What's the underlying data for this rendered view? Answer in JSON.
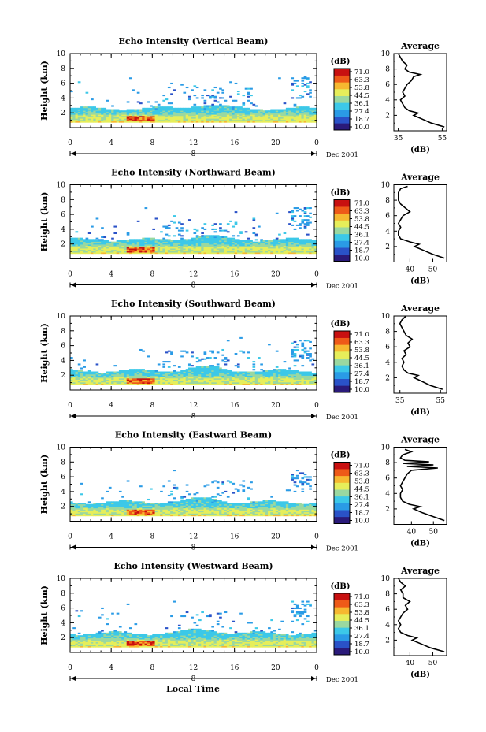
{
  "figure": {
    "x_axis_label": "Local Time",
    "colors": {
      "colormap": [
        "#2a1a7a",
        "#2a52c8",
        "#2a9be6",
        "#3cc8e8",
        "#9ad8a0",
        "#e6ee5a",
        "#f6b830",
        "#ee5a18",
        "#c81010"
      ]
    }
  },
  "chart_data": [
    {
      "type": "heatmap",
      "title": "Echo Intensity (Vertical Beam)",
      "ylabel": "Height (km)",
      "xlim": [
        0,
        24
      ],
      "ylim": [
        0,
        10
      ],
      "xticks": [
        "0",
        "4",
        "8",
        "12",
        "16",
        "20",
        "0"
      ],
      "yticks": [
        "2",
        "4",
        "6",
        "8",
        "10"
      ],
      "date_label": "8",
      "date_suffix": "Dec 2001",
      "colorbar": {
        "unit": "(dB)",
        "ticks": [
          "71.0",
          "63.3",
          "53.8",
          "44.5",
          "36.1",
          "27.4",
          "18.7",
          "10.0"
        ],
        "range": [
          10,
          71
        ]
      },
      "avg_profile": {
        "title": "Average",
        "xlabel": "(dB)",
        "xlim": [
          33,
          57
        ],
        "xtick_labels": [
          "35",
          "55"
        ],
        "xtick_values": [
          35,
          55
        ],
        "yticks": [
          "2",
          "4",
          "6",
          "8",
          "10"
        ],
        "height": [
          0.5,
          1.0,
          1.5,
          2.0,
          2.3,
          2.6,
          3.0,
          3.5,
          4.0,
          4.5,
          5.0,
          5.5,
          6.0,
          6.5,
          7.0,
          7.3,
          7.6,
          8.0,
          8.5,
          9.0,
          9.5,
          10.0
        ],
        "db": [
          56,
          50,
          46,
          42,
          44,
          40,
          38,
          37,
          36,
          38,
          37,
          38,
          39,
          41,
          42,
          45,
          40,
          38,
          39,
          37,
          36,
          35
        ]
      }
    },
    {
      "type": "heatmap",
      "title": "Echo Intensity (Northward Beam)",
      "ylabel": "Height (km)",
      "xlim": [
        0,
        24
      ],
      "ylim": [
        0,
        10
      ],
      "xticks": [
        "0",
        "4",
        "8",
        "12",
        "16",
        "20",
        "0"
      ],
      "yticks": [
        "2",
        "4",
        "6",
        "8",
        "10"
      ],
      "date_label": "8",
      "date_suffix": "Dec 2001",
      "colorbar": {
        "unit": "(dB)",
        "ticks": [
          "71.0",
          "63.3",
          "53.8",
          "44.5",
          "36.1",
          "27.4",
          "18.7",
          "10.0"
        ],
        "range": [
          10,
          71
        ]
      },
      "avg_profile": {
        "title": "Average",
        "xlabel": "(dB)",
        "xlim": [
          33,
          56
        ],
        "xtick_labels": [
          "40",
          "50"
        ],
        "xtick_values": [
          40,
          50
        ],
        "yticks": [
          "2",
          "4",
          "6",
          "8",
          "10"
        ],
        "height": [
          0.5,
          1.0,
          1.5,
          2.0,
          2.3,
          2.6,
          3.0,
          3.5,
          4.0,
          4.5,
          5.0,
          5.5,
          6.0,
          6.5,
          7.0,
          7.5,
          8.0,
          8.5,
          9.0,
          9.5,
          9.8
        ],
        "db": [
          55,
          50,
          46,
          42,
          44,
          40,
          36,
          35,
          35,
          36,
          35,
          36,
          37,
          40,
          38,
          36,
          35,
          35,
          35,
          36,
          39
        ]
      }
    },
    {
      "type": "heatmap",
      "title": "Echo Intensity (Southward Beam)",
      "ylabel": "Height (km)",
      "xlim": [
        0,
        24
      ],
      "ylim": [
        0,
        10
      ],
      "xticks": [
        "0",
        "4",
        "8",
        "12",
        "16",
        "20",
        "0"
      ],
      "yticks": [
        "2",
        "4",
        "6",
        "8",
        "10"
      ],
      "date_label": "8",
      "date_suffix": "Dec 2001",
      "colorbar": {
        "unit": "(dB)",
        "ticks": [
          "71.0",
          "63.3",
          "53.8",
          "44.5",
          "36.1",
          "27.4",
          "18.7",
          "10.0"
        ],
        "range": [
          10,
          71
        ]
      },
      "avg_profile": {
        "title": "Average",
        "xlabel": "(dB)",
        "xlim": [
          32,
          58
        ],
        "xtick_labels": [
          "35",
          "55"
        ],
        "xtick_values": [
          35,
          55
        ],
        "yticks": [
          "2",
          "4",
          "6",
          "8",
          "10"
        ],
        "height": [
          0.5,
          1.0,
          1.5,
          2.0,
          2.3,
          2.6,
          3.0,
          3.5,
          4.0,
          4.5,
          5.0,
          5.5,
          6.0,
          6.5,
          7.0,
          7.5,
          8.0,
          8.5,
          9.0,
          9.5,
          10.0
        ],
        "db": [
          56,
          50,
          46,
          42,
          44,
          39,
          37,
          36,
          37,
          36,
          38,
          37,
          40,
          39,
          41,
          38,
          37,
          36,
          35,
          36,
          38
        ]
      }
    },
    {
      "type": "heatmap",
      "title": "Echo Intensity (Eastward Beam)",
      "ylabel": "Height (km)",
      "xlim": [
        0,
        24
      ],
      "ylim": [
        0,
        10
      ],
      "xticks": [
        "0",
        "4",
        "8",
        "12",
        "16",
        "20",
        "0"
      ],
      "yticks": [
        "2",
        "4",
        "6",
        "8",
        "10"
      ],
      "date_label": "8",
      "date_suffix": "Dec 2001",
      "colorbar": {
        "unit": "(dB)",
        "ticks": [
          "71.0",
          "63.3",
          "53.8",
          "44.5",
          "36.1",
          "27.4",
          "18.7",
          "10.0"
        ],
        "range": [
          10,
          71
        ]
      },
      "avg_profile": {
        "title": "Average",
        "xlabel": "(dB)",
        "xlim": [
          32,
          56
        ],
        "xtick_labels": [
          "40",
          "50"
        ],
        "xtick_values": [
          40,
          50
        ],
        "yticks": [
          "2",
          "4",
          "6",
          "8",
          "10"
        ],
        "height": [
          0.5,
          1.0,
          1.5,
          2.0,
          2.3,
          2.6,
          3.0,
          3.5,
          4.0,
          4.5,
          5.0,
          5.5,
          6.0,
          6.5,
          7.0,
          7.3,
          7.5,
          7.7,
          7.9,
          8.1,
          8.3,
          8.6,
          9.0,
          9.4,
          9.7
        ],
        "db": [
          55,
          50,
          45,
          41,
          44,
          39,
          36,
          35,
          35,
          36,
          35,
          36,
          37,
          38,
          40,
          52,
          38,
          50,
          36,
          48,
          37,
          35,
          36,
          40,
          37
        ]
      }
    },
    {
      "type": "heatmap",
      "title": "Echo Intensity (Westward Beam)",
      "ylabel": "Height (km)",
      "xlim": [
        0,
        24
      ],
      "ylim": [
        0,
        10
      ],
      "xticks": [
        "0",
        "4",
        "8",
        "12",
        "16",
        "20",
        "0"
      ],
      "yticks": [
        "2",
        "4",
        "6",
        "8",
        "10"
      ],
      "date_label": "8",
      "date_suffix": "Dec 2001",
      "colorbar": {
        "unit": "(dB)",
        "ticks": [
          "71.0",
          "63.3",
          "53.8",
          "44.5",
          "36.1",
          "27.4",
          "18.7",
          "10.0"
        ],
        "range": [
          10,
          71
        ]
      },
      "avg_profile": {
        "title": "Average",
        "xlabel": "(dB)",
        "xlim": [
          33,
          56
        ],
        "xtick_labels": [
          "40",
          "50"
        ],
        "xtick_values": [
          40,
          50
        ],
        "yticks": [
          "2",
          "4",
          "6",
          "8",
          "10"
        ],
        "height": [
          0.5,
          1.0,
          1.5,
          2.0,
          2.3,
          2.6,
          3.0,
          3.5,
          4.0,
          4.5,
          5.0,
          5.5,
          6.0,
          6.5,
          7.0,
          7.5,
          8.0,
          8.5,
          9.0,
          9.5,
          10.0
        ],
        "db": [
          55,
          49,
          45,
          41,
          43,
          39,
          36,
          35,
          36,
          35,
          36,
          37,
          39,
          38,
          40,
          37,
          37,
          36,
          38,
          36,
          35
        ]
      }
    }
  ]
}
